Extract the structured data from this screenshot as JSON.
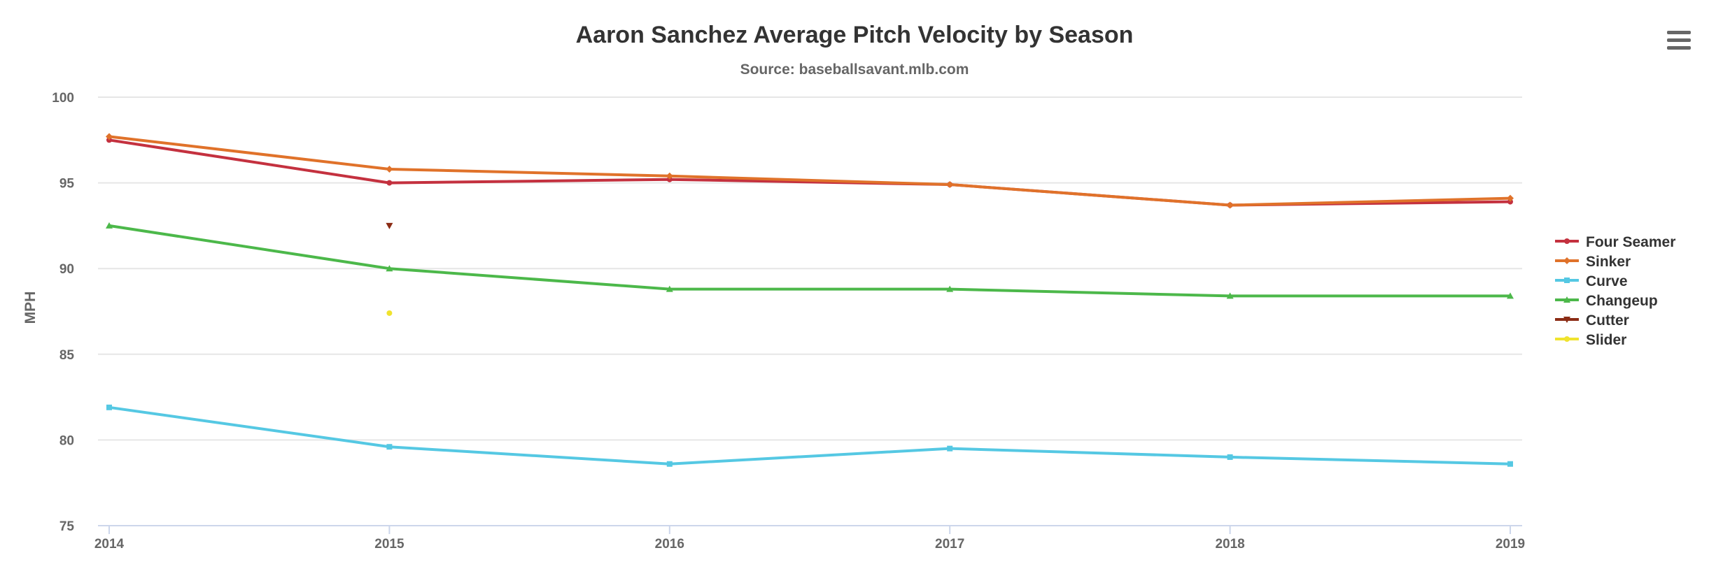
{
  "chart_data": {
    "type": "line",
    "title": "Aaron Sanchez Average Pitch Velocity by Season",
    "subtitle": "Source: baseballsavant.mlb.com",
    "xlabel": "",
    "ylabel": "MPH",
    "x": [
      "2014",
      "2015",
      "2016",
      "2017",
      "2018",
      "2019"
    ],
    "ylim": [
      75,
      100
    ],
    "yticks": [
      75,
      80,
      85,
      90,
      95,
      100
    ],
    "grid": true,
    "legend_position": "right",
    "series": [
      {
        "name": "Four Seamer",
        "color": "#c4313f",
        "marker": "circle",
        "values": [
          97.5,
          95.0,
          95.2,
          94.9,
          93.7,
          93.9
        ]
      },
      {
        "name": "Sinker",
        "color": "#e0722a",
        "marker": "diamond",
        "values": [
          97.7,
          95.8,
          95.4,
          94.9,
          93.7,
          94.1
        ]
      },
      {
        "name": "Curve",
        "color": "#55c8e3",
        "marker": "square",
        "values": [
          81.9,
          79.6,
          78.6,
          79.5,
          79.0,
          78.6
        ]
      },
      {
        "name": "Changeup",
        "color": "#4cb84a",
        "marker": "triangle",
        "values": [
          92.5,
          90.0,
          88.8,
          88.8,
          88.4,
          88.4
        ]
      },
      {
        "name": "Cutter",
        "color": "#8b2c15",
        "marker": "triangle-down",
        "values": [
          null,
          92.5,
          null,
          null,
          null,
          null
        ]
      },
      {
        "name": "Slider",
        "color": "#f0e32e",
        "marker": "circle",
        "values": [
          null,
          87.4,
          null,
          null,
          null,
          null
        ]
      }
    ]
  },
  "menu": {
    "icon": "hamburger-menu-icon"
  }
}
